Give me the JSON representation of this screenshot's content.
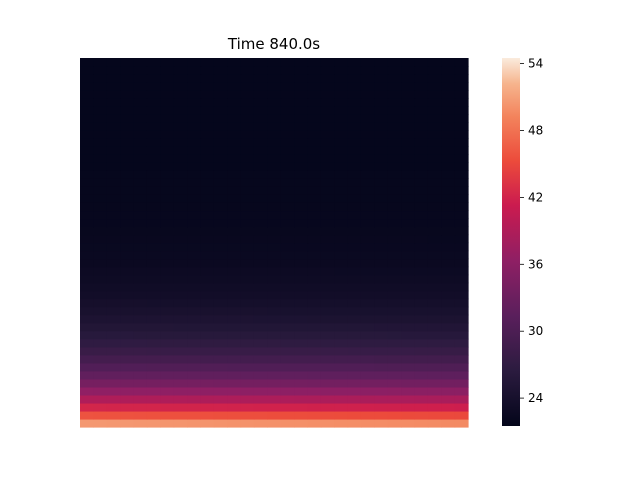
{
  "chart_data": {
    "type": "heatmap",
    "title": "Time 840.0s",
    "xlabel": "",
    "ylabel": "",
    "colormap": "rocket",
    "color_range": [
      21.5,
      54.5
    ],
    "colorbar_ticks": [
      24,
      30,
      36,
      42,
      48,
      54
    ],
    "grid": false,
    "columns": 29,
    "rows_from_bottom": [
      50.5,
      45.8,
      42.2,
      39.0,
      36.4,
      34.0,
      32.1,
      30.5,
      29.1,
      27.9,
      26.9,
      26.0,
      25.3,
      24.7,
      24.2,
      23.8,
      23.4,
      23.1,
      22.9,
      22.7,
      22.5,
      22.4,
      22.3,
      22.2,
      22.1,
      22.05,
      22.0,
      21.95,
      21.9,
      21.9,
      21.85,
      21.85,
      21.8,
      21.8,
      21.8,
      21.8,
      21.8,
      21.8,
      21.8,
      21.8,
      21.8,
      21.8,
      21.8,
      21.8,
      21.8,
      21.8
    ]
  }
}
